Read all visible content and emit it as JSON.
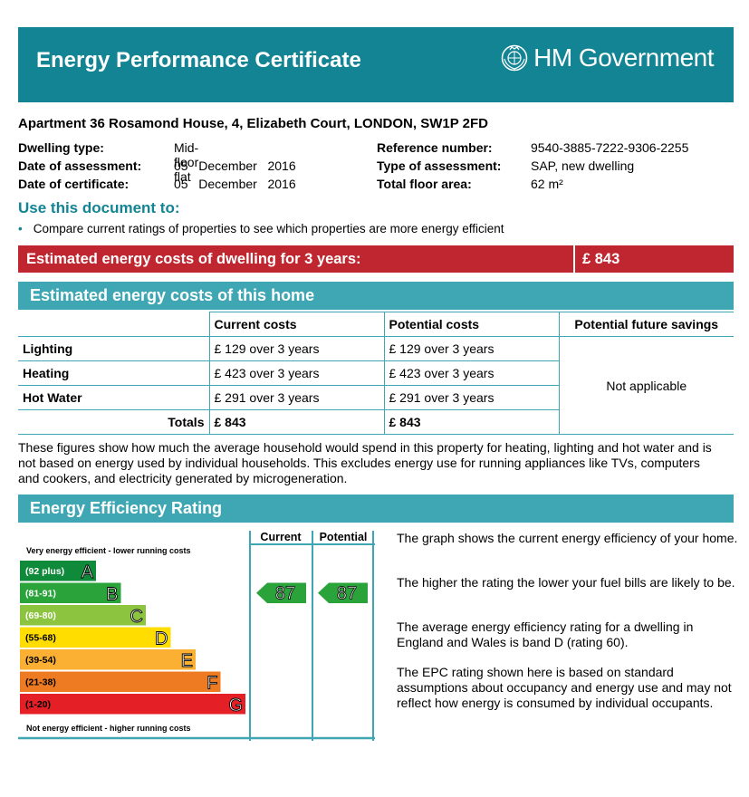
{
  "header": {
    "title": "Energy Performance Certificate",
    "logo_text": "HM Government"
  },
  "address": "Apartment 36 Rosamond House, 4, Elizabeth Court, LONDON, SW1P 2FD",
  "details_left": [
    {
      "label": "Dwelling type:",
      "value": "Mid-floor flat"
    },
    {
      "label": "Date of assessment:",
      "value": "05   December   2016"
    },
    {
      "label": "Date of certificate:",
      "value": "05   December   2016"
    }
  ],
  "details_right": [
    {
      "label": "Reference number:",
      "value": "9540-3885-7222-9306-2255"
    },
    {
      "label": "Type of assessment:",
      "value": "SAP, new dwelling"
    },
    {
      "label": "Total floor area:",
      "value": "62 m²"
    }
  ],
  "use_doc": {
    "title": "Use this document to:",
    "bullet": "Compare current ratings of properties to see which properties are more energy efficient"
  },
  "estimated_3yr": {
    "label": "Estimated energy costs of dwelling for 3 years:",
    "value": "£ 843"
  },
  "costs": {
    "heading": "Estimated energy costs of this home",
    "columns": [
      "Current costs",
      "Potential costs",
      "Potential future savings"
    ],
    "rows": [
      {
        "label": "Lighting",
        "current": "£ 129 over 3 years",
        "potential": "£ 129 over 3 years"
      },
      {
        "label": "Heating",
        "current": "£ 423 over 3 years",
        "potential": "£ 423 over 3 years"
      },
      {
        "label": "Hot Water",
        "current": "£ 291 over 3 years",
        "potential": "£ 291 over 3 years"
      }
    ],
    "totals_label": "Totals",
    "total_current": "£ 843",
    "total_potential": "£ 843",
    "savings": "Not applicable",
    "note": "These figures show how much the average household would spend in this property for heating, lighting and hot water and is not based on energy used by individual households. This excludes energy use for running appliances like TVs, computers and cookers, and electricity generated by microgeneration."
  },
  "rating": {
    "heading": "Energy Efficiency Rating",
    "col_current": "Current",
    "col_potential": "Potential",
    "top_note": "Very energy efficient - lower running costs",
    "bottom_note": "Not energy efficient - higher running costs",
    "bands": [
      {
        "range": "(92 plus)",
        "letter": "A",
        "color": "#0f8a3a"
      },
      {
        "range": "(81-91)",
        "letter": "B",
        "color": "#2aa33b"
      },
      {
        "range": "(69-80)",
        "letter": "C",
        "color": "#8cc43f"
      },
      {
        "range": "(55-68)",
        "letter": "D",
        "color": "#ffdd00"
      },
      {
        "range": "(39-54)",
        "letter": "E",
        "color": "#fbb033"
      },
      {
        "range": "(21-38)",
        "letter": "F",
        "color": "#ee7b22"
      },
      {
        "range": "(1-20)",
        "letter": "G",
        "color": "#e42026"
      }
    ],
    "current_value": "87",
    "potential_value": "87",
    "arrow_color": "#2aa33b",
    "descriptions": [
      "The graph shows the current energy efficiency of your home.",
      "The higher the rating the lower your fuel bills are likely to be.",
      "The average energy efficiency rating for a dwelling in England and Wales is band D (rating 60).",
      "The EPC rating shown here is based on standard assumptions about occupancy and energy use and may not reflect how energy is consumed by individual occupants."
    ]
  },
  "colors": {
    "teal_dark": "#138494",
    "teal_light": "#3fa6b3",
    "red": "#c0262f"
  }
}
